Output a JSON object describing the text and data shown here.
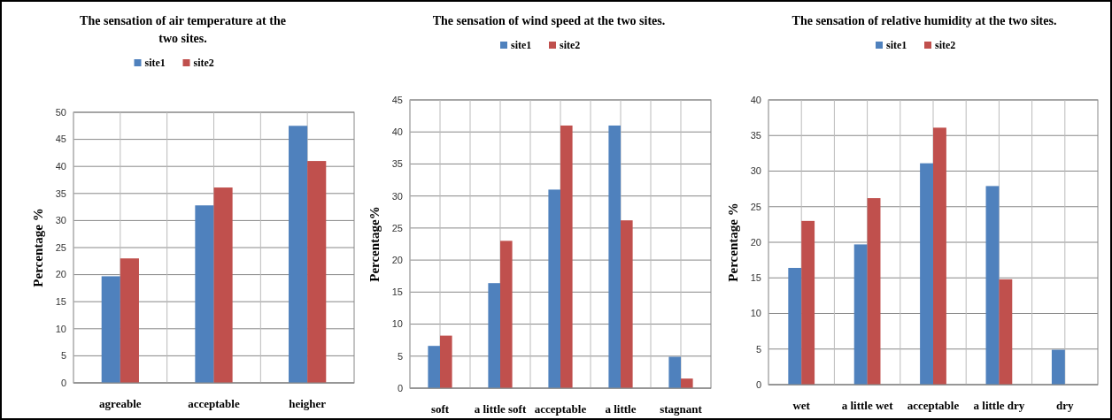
{
  "chart_data": [
    {
      "type": "bar",
      "title": "The sensation of air temperature at the two sites.",
      "ylabel": "Percentage %",
      "categories": [
        "agreable",
        "acceptable",
        "heigher"
      ],
      "series": [
        {
          "name": "site1",
          "color": "#4f81bd",
          "values": [
            19.7,
            32.8,
            47.5
          ]
        },
        {
          "name": "site2",
          "color": "#c0504d",
          "values": [
            23,
            36.1,
            41
          ]
        }
      ],
      "ylim": [
        0,
        50
      ],
      "yticks": [
        0,
        5,
        10,
        15,
        20,
        25,
        30,
        35,
        40,
        45,
        50
      ],
      "grid": true,
      "legend": "top"
    },
    {
      "type": "bar",
      "title": "The sensation of wind speed at the two sites.",
      "ylabel": "Percentage%",
      "categories": [
        "soft",
        "a little soft",
        "acceptable",
        "a little",
        "stagnant"
      ],
      "series": [
        {
          "name": "site1",
          "color": "#4f81bd",
          "values": [
            6.6,
            16.4,
            31,
            41,
            4.9
          ]
        },
        {
          "name": "site2",
          "color": "#c0504d",
          "values": [
            8.2,
            23,
            41,
            26.2,
            1.5
          ]
        }
      ],
      "ylim": [
        0,
        45
      ],
      "yticks": [
        0,
        5,
        10,
        15,
        20,
        25,
        30,
        35,
        40,
        45
      ],
      "grid": true,
      "legend": "top"
    },
    {
      "type": "bar",
      "title": "The sensation of relative humidity at the two sites.",
      "ylabel": "Percentage %",
      "categories": [
        "wet",
        "a little wet",
        "acceptable",
        "a little dry",
        "dry"
      ],
      "series": [
        {
          "name": "site1",
          "color": "#4f81bd",
          "values": [
            16.4,
            19.7,
            31.1,
            27.9,
            4.9
          ]
        },
        {
          "name": "site2",
          "color": "#c0504d",
          "values": [
            23,
            26.2,
            36.1,
            14.8,
            0
          ]
        }
      ],
      "ylim": [
        0,
        40
      ],
      "yticks": [
        0,
        5,
        10,
        15,
        20,
        25,
        30,
        35,
        40
      ],
      "grid": true,
      "legend": "top"
    }
  ]
}
